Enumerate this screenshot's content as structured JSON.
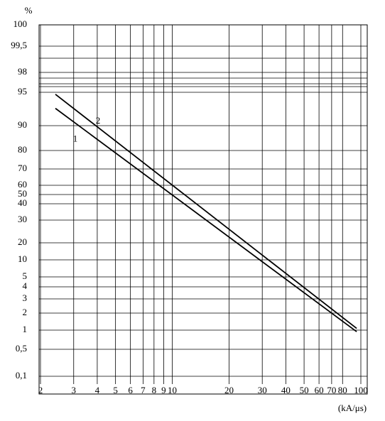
{
  "chart_data": {
    "type": "line",
    "ylabel": "%",
    "xlabel": "(kA/μs)",
    "xscale": "log",
    "xlim": [
      2,
      100
    ],
    "xticks": [
      2,
      3,
      4,
      5,
      6,
      7,
      8,
      9,
      10,
      20,
      30,
      40,
      50,
      60,
      70,
      80,
      100
    ],
    "yticks": [
      100,
      {
        "value": 99.5,
        "label": "99,5"
      },
      98,
      95,
      90,
      80,
      70,
      60,
      50,
      40,
      30,
      20,
      10,
      5,
      4,
      3,
      2,
      1,
      {
        "value": 0.5,
        "label": "0,5"
      },
      {
        "value": 0.1,
        "label": "0,1"
      }
    ],
    "grid": true,
    "x": [
      2.4,
      95
    ],
    "series": [
      {
        "name": "1",
        "color": "#000000",
        "values": [
          92.6,
          0.96
        ]
      },
      {
        "name": "2",
        "color": "#000000",
        "values": [
          94.7,
          1.1
        ]
      }
    ]
  }
}
